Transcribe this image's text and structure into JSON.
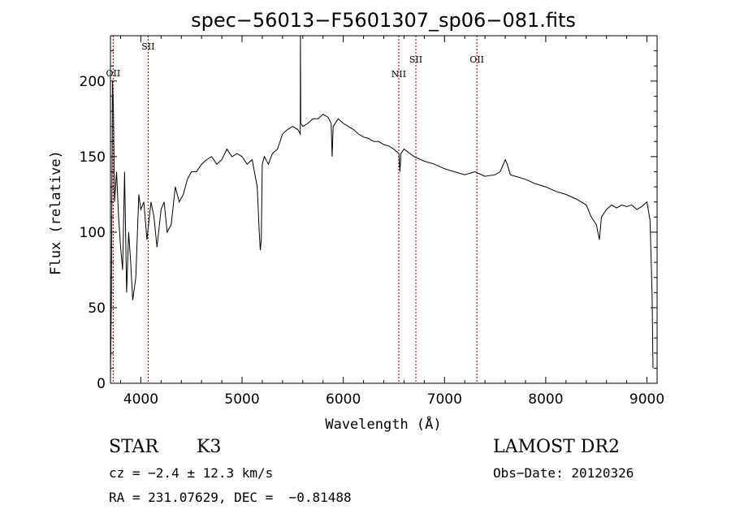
{
  "chart_data": {
    "type": "line",
    "title": "spec−56013−F5601307_sp06−081.fits",
    "xlabel": "Wavelength (Å)",
    "ylabel": "Flux (relative)",
    "xlim": [
      3700,
      9100
    ],
    "ylim": [
      0,
      230
    ],
    "xticks": [
      4000,
      5000,
      6000,
      7000,
      8000,
      9000
    ],
    "yticks": [
      0,
      50,
      100,
      150,
      200
    ],
    "grid": false,
    "series": [
      {
        "x": [
          3700,
          3710,
          3720,
          3730,
          3740,
          3760,
          3780,
          3800,
          3820,
          3840,
          3860,
          3880,
          3900,
          3920,
          3950,
          3980,
          4000,
          4030,
          4060,
          4100,
          4130,
          4160,
          4200,
          4230,
          4260,
          4300,
          4340,
          4380,
          4420,
          4460,
          4500,
          4550,
          4600,
          4650,
          4700,
          4750,
          4800,
          4850,
          4900,
          4950,
          5000,
          5050,
          5100,
          5150,
          5170,
          5180,
          5190,
          5200,
          5220,
          5260,
          5300,
          5350,
          5400,
          5450,
          5500,
          5550,
          5575,
          5577,
          5580,
          5600,
          5650,
          5700,
          5750,
          5800,
          5850,
          5880,
          5890,
          5900,
          5950,
          6000,
          6050,
          6100,
          6150,
          6200,
          6250,
          6300,
          6350,
          6400,
          6450,
          6500,
          6550,
          6560,
          6570,
          6600,
          6700,
          6800,
          6900,
          7000,
          7100,
          7200,
          7300,
          7400,
          7500,
          7550,
          7600,
          7620,
          7650,
          7700,
          7800,
          7900,
          8000,
          8100,
          8200,
          8300,
          8400,
          8450,
          8500,
          8530,
          8550,
          8600,
          8650,
          8700,
          8750,
          8800,
          8850,
          8900,
          8950,
          9000,
          9030,
          9050,
          9060
        ],
        "y": [
          5,
          60,
          200,
          180,
          120,
          140,
          110,
          90,
          75,
          140,
          60,
          100,
          80,
          55,
          70,
          125,
          115,
          120,
          95,
          120,
          110,
          90,
          115,
          120,
          100,
          105,
          130,
          120,
          125,
          135,
          140,
          140,
          145,
          148,
          150,
          145,
          148,
          155,
          150,
          152,
          150,
          145,
          148,
          130,
          100,
          88,
          95,
          145,
          150,
          145,
          152,
          155,
          165,
          168,
          170,
          168,
          165,
          235,
          172,
          170,
          172,
          175,
          175,
          178,
          176,
          172,
          150,
          170,
          175,
          172,
          170,
          168,
          165,
          163,
          162,
          160,
          160,
          158,
          157,
          155,
          152,
          140,
          152,
          155,
          150,
          147,
          145,
          142,
          140,
          138,
          140,
          137,
          138,
          140,
          148,
          145,
          138,
          137,
          135,
          132,
          130,
          127,
          125,
          122,
          118,
          110,
          105,
          95,
          110,
          115,
          118,
          116,
          118,
          117,
          118,
          115,
          117,
          120,
          108,
          60,
          10
        ]
      }
    ],
    "emission_lines": [
      {
        "label": "OII",
        "wavelength": 3727
      },
      {
        "label": "SII",
        "wavelength": 4072
      },
      {
        "label": "NII",
        "wavelength": 6548
      },
      {
        "label": "SII",
        "wavelength": 6717
      },
      {
        "label": "OII",
        "wavelength": 7320
      }
    ]
  },
  "info": {
    "star_type": "STAR",
    "subclass": "K3",
    "survey": "LAMOST DR2",
    "cz": "cz = −2.4 ± 12.3 km/s",
    "obs_date": "Obs−Date: 20120326",
    "radec": "RA = 231.07629, DEC =  −0.81488"
  },
  "colors": {
    "spectrum": "#000000",
    "line_markers": "#8b0000"
  }
}
